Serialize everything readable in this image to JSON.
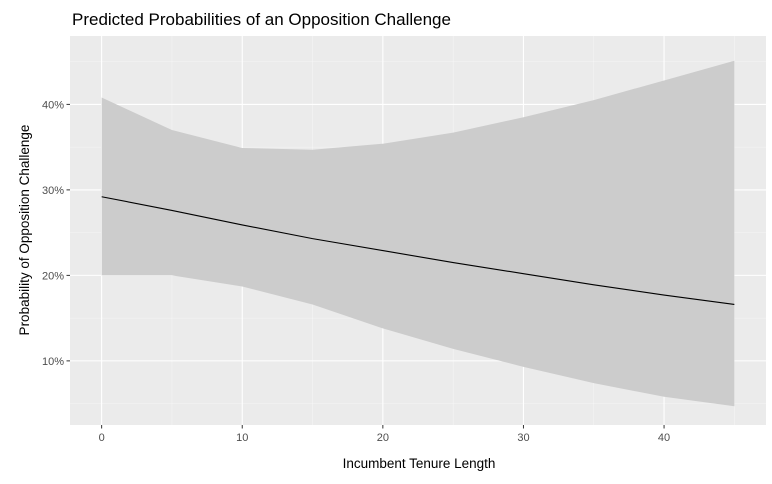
{
  "chart_data": {
    "type": "line",
    "title": "Predicted Probabilities of an Opposition Challenge",
    "xlabel": "Incumbent Tenure Length",
    "ylabel": "Probability of Opposition Challenge",
    "xlim": [
      -2.25,
      47.25
    ],
    "ylim": [
      0.025,
      0.48
    ],
    "x_ticks": [
      0,
      10,
      20,
      30,
      40
    ],
    "x_tick_labels": [
      "0",
      "10",
      "20",
      "30",
      "40"
    ],
    "x_minor": [
      5,
      15,
      25,
      35,
      45
    ],
    "y_ticks": [
      0.1,
      0.2,
      0.3,
      0.4
    ],
    "y_tick_labels": [
      "10%",
      "20%",
      "30%",
      "40%"
    ],
    "y_minor": [
      0.05,
      0.15,
      0.25,
      0.35,
      0.45
    ],
    "grid": true,
    "series": [
      {
        "x": [
          0,
          5,
          10,
          15,
          20,
          25,
          30,
          35,
          40,
          45
        ],
        "values": [
          0.292,
          0.276,
          0.259,
          0.243,
          0.229,
          0.215,
          0.202,
          0.189,
          0.177,
          0.166
        ],
        "ci_lower": [
          0.2,
          0.2,
          0.187,
          0.166,
          0.138,
          0.114,
          0.093,
          0.074,
          0.058,
          0.047
        ],
        "ci_upper": [
          0.408,
          0.37,
          0.349,
          0.347,
          0.354,
          0.367,
          0.385,
          0.405,
          0.428,
          0.451
        ]
      }
    ],
    "colors": {
      "panel": "#ebebeb",
      "grid_major": "#ffffff",
      "ribbon": "#cccccc",
      "line": "#000000"
    }
  }
}
